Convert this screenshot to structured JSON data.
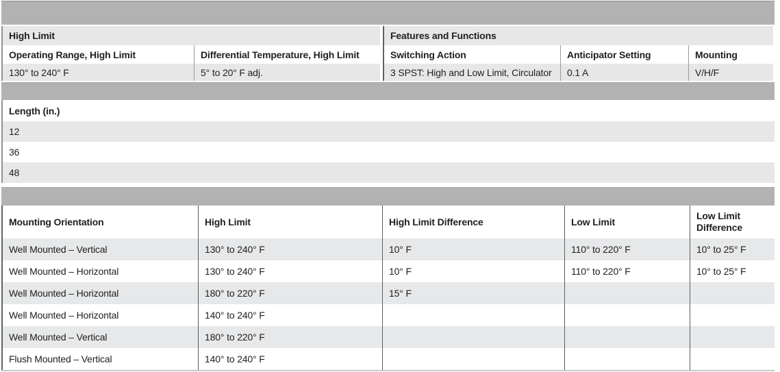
{
  "colors": {
    "band_gray": "#b2b2b2",
    "row_gray": "#e7e7e7",
    "divider_dark": "#595a5c",
    "divider_light": "#9a9a9a",
    "text": "#202020"
  },
  "high_limit_section": {
    "title": "High Limit",
    "columns": [
      {
        "header": "Operating Range, High Limit",
        "value": "130° to 240° F"
      },
      {
        "header": "Differential Temperature, High Limit",
        "value": "5° to 20° F adj."
      }
    ]
  },
  "features_section": {
    "title": "Features and Functions",
    "columns": [
      {
        "header": "Switching Action",
        "value": "3 SPST: High and Low Limit, Circulator"
      },
      {
        "header": "Anticipator Setting",
        "value": "0.1 A"
      },
      {
        "header": "Mounting",
        "value": "V/H/F"
      }
    ]
  },
  "length_section": {
    "header": "Length (in.)",
    "values": [
      "12",
      "36",
      "48"
    ]
  },
  "mounting_table": {
    "columns": [
      {
        "header": "Mounting Orientation",
        "values": [
          "Well Mounted – Vertical",
          "Well Mounted – Horizontal",
          "Well Mounted – Horizontal",
          "Well Mounted – Horizontal",
          "Well Mounted – Vertical",
          "Flush Mounted – Vertical"
        ]
      },
      {
        "header": "High Limit",
        "values": [
          "130° to 240° F",
          "130° to 240° F",
          "180° to 220° F",
          "140° to 240° F",
          "180° to 220° F",
          "140° to 240° F"
        ]
      },
      {
        "header": "High Limit Difference",
        "values": [
          "10° F",
          "10° F",
          "15° F",
          "",
          "",
          ""
        ]
      },
      {
        "header": "Low Limit",
        "values": [
          "110° to 220° F",
          "110° to 220° F",
          "",
          "",
          "",
          ""
        ]
      },
      {
        "header": "Low Limit Difference",
        "values": [
          "10° to 25° F",
          "10° to 25° F",
          "",
          "",
          "",
          ""
        ]
      }
    ]
  }
}
